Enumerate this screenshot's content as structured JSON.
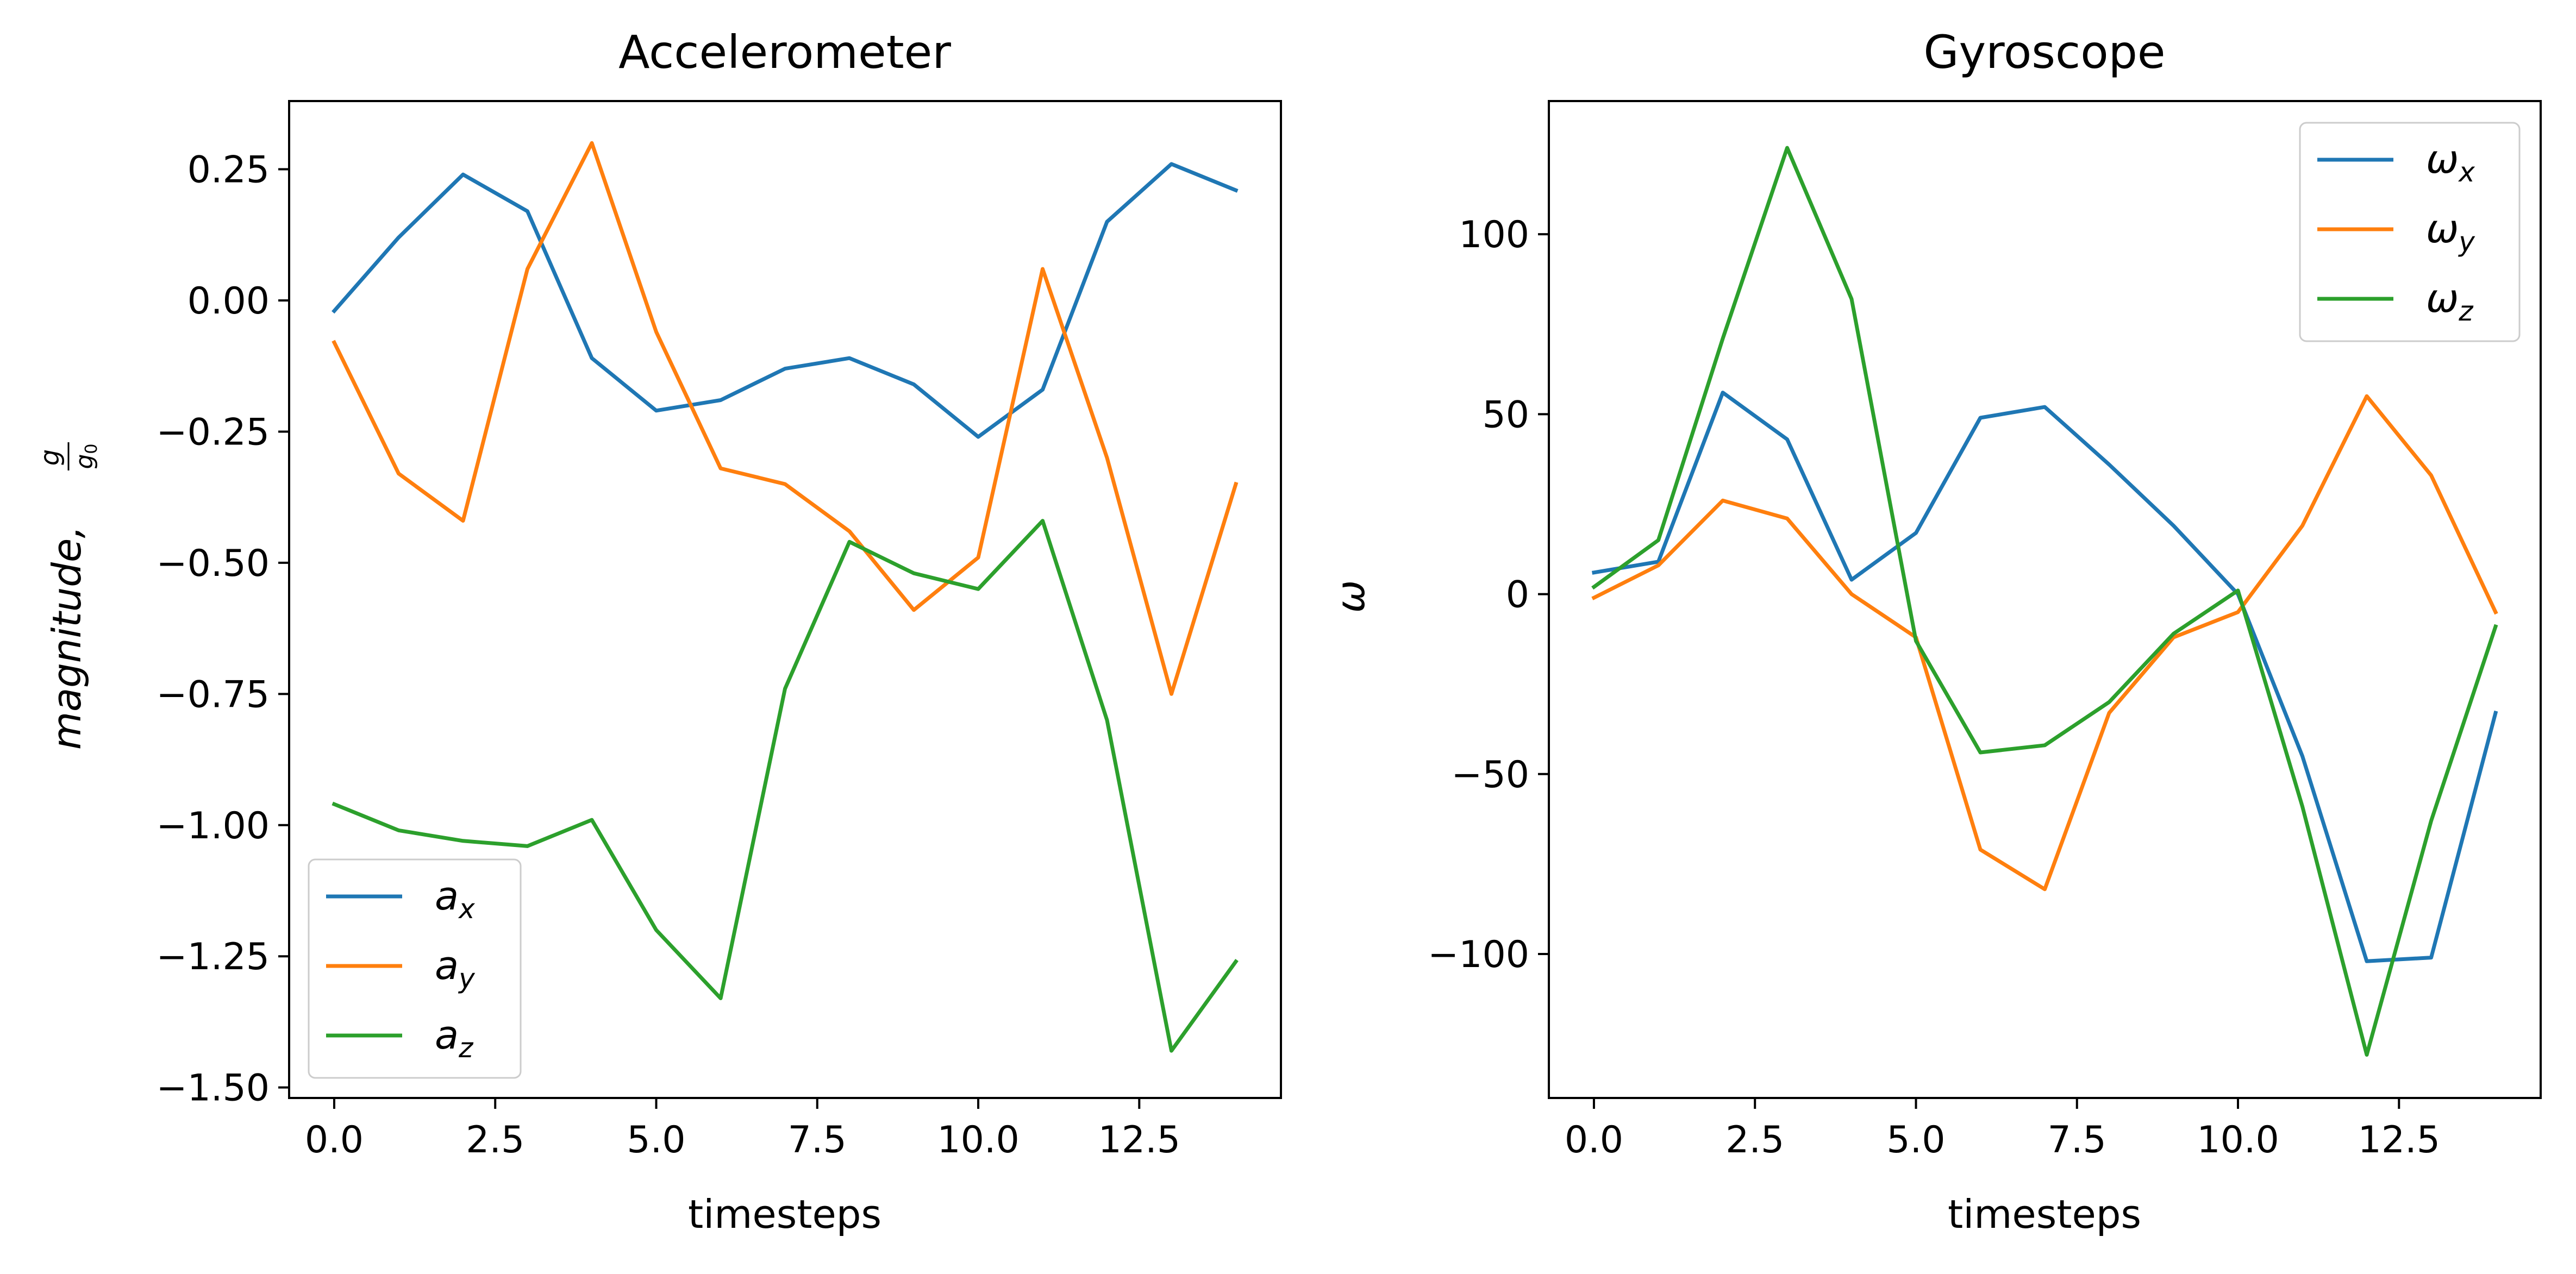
{
  "chart_data": [
    {
      "type": "line",
      "title": "Accelerometer",
      "xlabel": "timesteps",
      "ylabel": "magnitude, g/g₀",
      "x": [
        0,
        1,
        2,
        3,
        4,
        5,
        6,
        7,
        8,
        9,
        10,
        11,
        12,
        13,
        14
      ],
      "xlim": [
        -0.7,
        14.7
      ],
      "ylim": [
        -1.52,
        0.38
      ],
      "xticks": [
        "0.0",
        "2.5",
        "5.0",
        "7.5",
        "10.0",
        "12.5"
      ],
      "yticks": [
        "0.25",
        "0.00",
        "−0.25",
        "−0.50",
        "−0.75",
        "−1.00",
        "−1.25",
        "−1.50"
      ],
      "legend_position": "lower-left",
      "grid": false,
      "series": [
        {
          "name": "a",
          "subscript": "x",
          "color": "#1f77b4",
          "values": [
            -0.02,
            0.12,
            0.24,
            0.17,
            -0.11,
            -0.21,
            -0.19,
            -0.13,
            -0.11,
            -0.16,
            -0.26,
            -0.17,
            0.15,
            0.26,
            0.21
          ]
        },
        {
          "name": "a",
          "subscript": "y",
          "color": "#ff7f0e",
          "values": [
            -0.08,
            -0.33,
            -0.42,
            0.06,
            0.3,
            -0.06,
            -0.32,
            -0.35,
            -0.44,
            -0.59,
            -0.49,
            0.06,
            -0.3,
            -0.75,
            -0.35
          ]
        },
        {
          "name": "a",
          "subscript": "z",
          "color": "#2ca02c",
          "values": [
            -0.96,
            -1.01,
            -1.03,
            -1.04,
            -0.99,
            -1.2,
            -1.33,
            -0.74,
            -0.46,
            -0.52,
            -0.55,
            -0.42,
            -0.8,
            -1.43,
            -1.26
          ]
        }
      ]
    },
    {
      "type": "line",
      "title": "Gyroscope",
      "xlabel": "timesteps",
      "ylabel": "ω",
      "x": [
        0,
        1,
        2,
        3,
        4,
        5,
        6,
        7,
        8,
        9,
        10,
        11,
        12,
        13,
        14
      ],
      "xlim": [
        -0.7,
        14.7
      ],
      "ylim": [
        -140,
        137
      ],
      "xticks": [
        "0.0",
        "2.5",
        "5.0",
        "7.5",
        "10.0",
        "12.5"
      ],
      "yticks": [
        "100",
        "50",
        "0",
        "−50",
        "−100"
      ],
      "legend_position": "upper-right",
      "grid": false,
      "series": [
        {
          "name": "ω",
          "subscript": "x",
          "color": "#1f77b4",
          "values": [
            6,
            9,
            56,
            43,
            4,
            17,
            49,
            52,
            36,
            19,
            0,
            -45,
            -102,
            -101,
            -33
          ]
        },
        {
          "name": "ω",
          "subscript": "y",
          "color": "#ff7f0e",
          "values": [
            -1,
            8,
            26,
            21,
            0,
            -12,
            -71,
            -82,
            -33,
            -12,
            -5,
            19,
            55,
            33,
            -5
          ]
        },
        {
          "name": "ω",
          "subscript": "z",
          "color": "#2ca02c",
          "values": [
            2,
            15,
            71,
            124,
            82,
            -13,
            -44,
            -42,
            -30,
            -11,
            1,
            -59,
            -128,
            -63,
            -9
          ]
        }
      ]
    }
  ]
}
